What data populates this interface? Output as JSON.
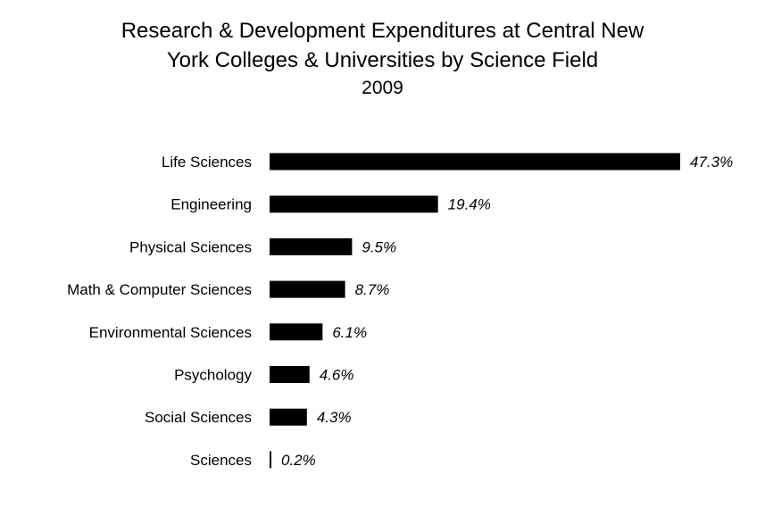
{
  "chart_data": {
    "type": "bar",
    "orientation": "horizontal",
    "title": "Research & Development Expenditures at Central New York Colleges & Universities by Science Field",
    "title_lines": [
      "Research & Development Expenditures at Central New",
      "York Colleges & Universities by Science Field"
    ],
    "subtitle": "2009",
    "categories": [
      "Life Sciences",
      "Engineering",
      "Physical Sciences",
      "Math & Computer Sciences",
      "Environmental Sciences",
      "Psychology",
      "Social Sciences",
      "Sciences"
    ],
    "values": [
      47.3,
      19.4,
      9.5,
      8.7,
      6.1,
      4.6,
      4.3,
      0.2
    ],
    "value_labels": [
      "47.3%",
      "19.4%",
      "9.5%",
      "8.7%",
      "6.1%",
      "4.6%",
      "4.3%",
      "0.2%"
    ],
    "unit": "%",
    "xlabel": "",
    "ylabel": "",
    "xlim": [
      0,
      47.3
    ],
    "grid": false,
    "legend": "none",
    "colors": {
      "bar": "#000000",
      "text": "#000000",
      "background": "#ffffff"
    }
  }
}
